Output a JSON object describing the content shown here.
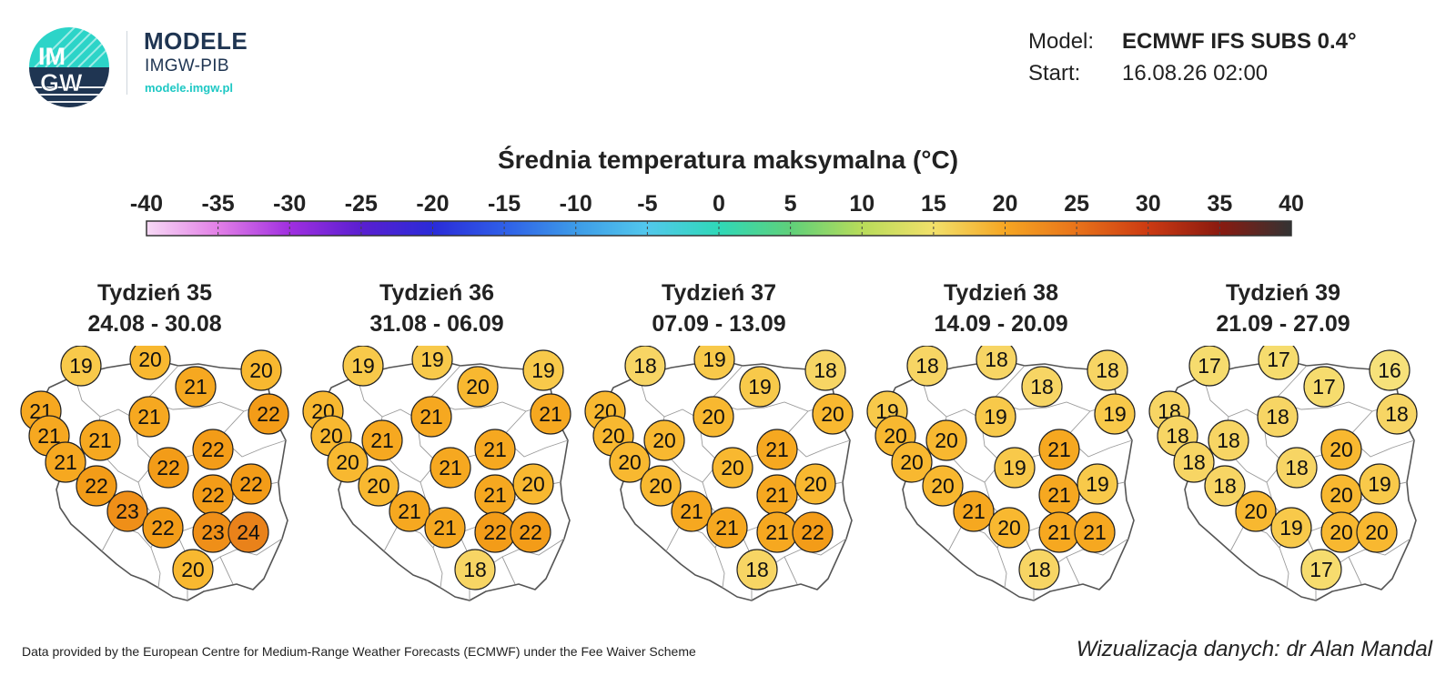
{
  "logo": {
    "emblem_lines": [
      "IM",
      "GW"
    ],
    "name": "MODELE",
    "subtitle": "IMGW-PIB",
    "url": "modele.imgw.pl"
  },
  "meta": {
    "model_label": "Model:",
    "model_value": "ECMWF IFS SUBS 0.4°",
    "start_label": "Start:",
    "start_value": "16.08.26 02:00"
  },
  "scale": {
    "title": "Średnia temperatura maksymalna (°C)",
    "ticks": [
      "-40",
      "-35",
      "-30",
      "-25",
      "-20",
      "-15",
      "-10",
      "-5",
      "0",
      "5",
      "10",
      "15",
      "20",
      "25",
      "30",
      "35",
      "40"
    ],
    "colors": [
      "#f7d9f5",
      "#e27fe6",
      "#a02fe0",
      "#5a1fd0",
      "#2a2bd8",
      "#2f5fe8",
      "#3d9be8",
      "#52c8ec",
      "#2fd8b8",
      "#5fd07a",
      "#b8dc5a",
      "#f2e06a",
      "#f5a623",
      "#e8731a",
      "#cc3a12",
      "#8a1a10",
      "#333333"
    ]
  },
  "marker_colors": {
    "16": "#f6e17a",
    "17": "#f6dc6e",
    "18": "#f7d564",
    "19": "#f8c94a",
    "20": "#f8b830",
    "21": "#f6a820",
    "22": "#f39c18",
    "23": "#ef8f18",
    "24": "#e9821a"
  },
  "weeks": [
    {
      "title": "Tydzień 35",
      "range": "24.08 - 30.08",
      "values": [
        21,
        19,
        20,
        21,
        20,
        22,
        21,
        21,
        21,
        21,
        22,
        22,
        22,
        22,
        22,
        23,
        22,
        23,
        24,
        20
      ]
    },
    {
      "title": "Tydzień 36",
      "range": "31.08 - 06.09",
      "values": [
        20,
        19,
        19,
        20,
        19,
        21,
        20,
        21,
        21,
        20,
        20,
        21,
        21,
        21,
        20,
        21,
        21,
        22,
        22,
        18
      ]
    },
    {
      "title": "Tydzień 37",
      "range": "07.09 - 13.09",
      "values": [
        20,
        18,
        19,
        19,
        18,
        20,
        20,
        20,
        20,
        20,
        20,
        20,
        21,
        21,
        20,
        21,
        21,
        21,
        22,
        18
      ]
    },
    {
      "title": "Tydzień 38",
      "range": "14.09 - 20.09",
      "values": [
        19,
        18,
        18,
        18,
        18,
        19,
        20,
        20,
        19,
        20,
        20,
        19,
        21,
        21,
        19,
        21,
        20,
        21,
        21,
        18
      ]
    },
    {
      "title": "Tydzień 39",
      "range": "21.09 - 27.09",
      "values": [
        18,
        17,
        17,
        17,
        16,
        18,
        18,
        18,
        18,
        18,
        18,
        18,
        20,
        20,
        19,
        20,
        19,
        20,
        20,
        17
      ]
    }
  ],
  "footer": {
    "credit": "Data provided by the European Centre for Medium-Range Weather Forecasts (ECMWF) under the Fee Waiver Scheme",
    "author": "Wizualizacja danych: dr Alan Mandal"
  }
}
